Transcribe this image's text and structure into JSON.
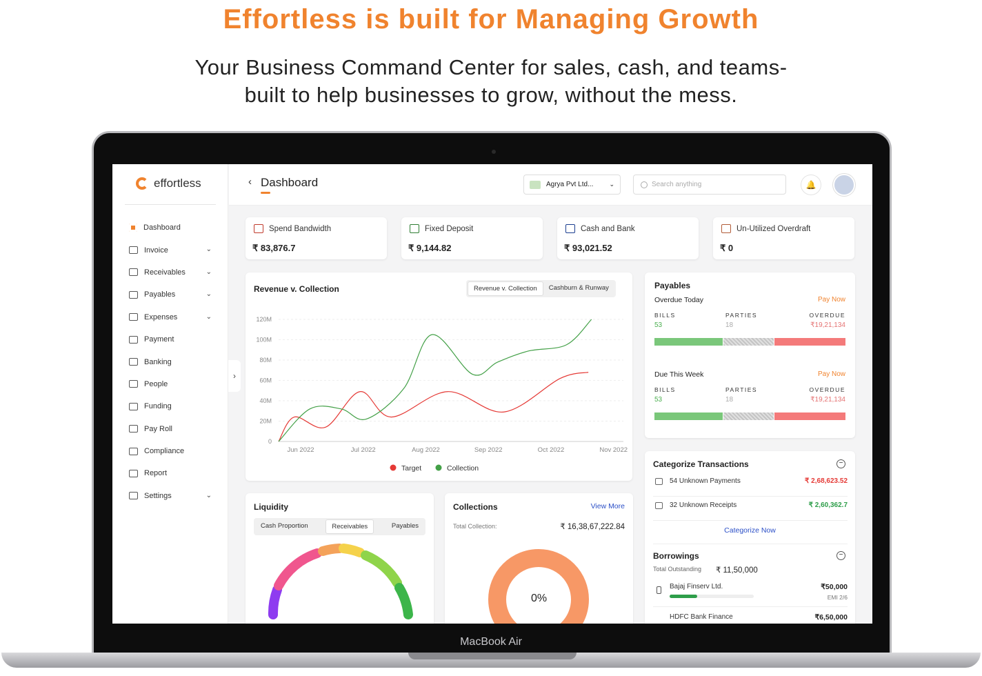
{
  "hero": {
    "title": "Effortless is built for Managing Growth",
    "subtitle_line1": "Your Business Command Center for sales, cash, and teams-",
    "subtitle_line2": "built to help businesses to grow, without the mess."
  },
  "device": {
    "label": "MacBook Air"
  },
  "app": {
    "logo_text": "effortless",
    "accent": "#f0832e"
  },
  "sidebar": {
    "items": [
      {
        "label": "Dashboard",
        "icon": "dashboard-icon",
        "active": true,
        "expandable": false
      },
      {
        "label": "Invoice",
        "icon": "invoice-icon",
        "expandable": true
      },
      {
        "label": "Receivables",
        "icon": "receivables-icon",
        "expandable": true
      },
      {
        "label": "Payables",
        "icon": "payables-icon",
        "expandable": true
      },
      {
        "label": "Expenses",
        "icon": "expenses-icon",
        "expandable": true
      },
      {
        "label": "Payment",
        "icon": "payment-icon",
        "expandable": false
      },
      {
        "label": "Banking",
        "icon": "bank-icon",
        "expandable": false
      },
      {
        "label": "People",
        "icon": "people-icon",
        "expandable": false
      },
      {
        "label": "Funding",
        "icon": "funding-icon",
        "expandable": false
      },
      {
        "label": "Pay Roll",
        "icon": "payroll-icon",
        "expandable": false
      },
      {
        "label": "Compliance",
        "icon": "compliance-icon",
        "expandable": false
      },
      {
        "label": "Report",
        "icon": "report-icon",
        "expandable": false
      },
      {
        "label": "Settings",
        "icon": "settings-icon",
        "expandable": true
      }
    ]
  },
  "header": {
    "title": "Dashboard",
    "company": "Agrya Pvt Ltd...",
    "search_placeholder": "Search anything"
  },
  "stats": [
    {
      "label": "Spend Bandwidth",
      "value": "₹ 83,876.7",
      "icon": "wallet-icon"
    },
    {
      "label": "Fixed Deposit",
      "value": "₹ 9,144.82",
      "icon": "deposit-icon"
    },
    {
      "label": "Cash and Bank",
      "value": "₹ 93,021.52",
      "icon": "bank-icon"
    },
    {
      "label": "Un-Utilized Overdraft",
      "value": "₹ 0",
      "icon": "overdraft-icon"
    }
  ],
  "revenue": {
    "title": "Revenue v. Collection",
    "tabs": [
      "Revenue v. Collection",
      "Cashburn & Runway"
    ],
    "active_tab": 0
  },
  "chart_data": {
    "type": "line",
    "title": "Revenue v. Collection",
    "x": [
      "Jun 2022",
      "Jul 2022",
      "Aug 2022",
      "Sep 2022",
      "Oct 2022",
      "Nov 2022"
    ],
    "y_ticks": [
      "0",
      "20M",
      "40M",
      "60M",
      "80M",
      "100M",
      "120M"
    ],
    "ylim": [
      0,
      120
    ],
    "y_unit": "M",
    "legend_position": "bottom",
    "series": [
      {
        "name": "Target",
        "color": "#e53935",
        "points": [
          [
            0,
            0
          ],
          [
            0.25,
            24
          ],
          [
            0.75,
            14
          ],
          [
            1.3,
            49
          ],
          [
            1.8,
            24
          ],
          [
            2.7,
            49
          ],
          [
            3.6,
            29
          ],
          [
            4.5,
            62
          ],
          [
            4.95,
            68
          ]
        ]
      },
      {
        "name": "Collection",
        "color": "#43a047",
        "points": [
          [
            0,
            0
          ],
          [
            0.5,
            32
          ],
          [
            1.0,
            32
          ],
          [
            1.4,
            22
          ],
          [
            2.0,
            52
          ],
          [
            2.45,
            105
          ],
          [
            3.1,
            66
          ],
          [
            3.5,
            78
          ],
          [
            4.0,
            89
          ],
          [
            4.6,
            95
          ],
          [
            5.0,
            120
          ]
        ]
      }
    ]
  },
  "payables": {
    "title": "Payables",
    "sections": [
      {
        "label": "Overdue Today",
        "action": "Pay Now",
        "bills_label": "BILLS",
        "parties_label": "PARTIES",
        "overdue_label": "OVERDUE",
        "bills": "53",
        "parties": "18",
        "overdue": "₹19,21,134"
      },
      {
        "label": "Due This Week",
        "action": "Pay Now",
        "bills_label": "BILLS",
        "parties_label": "PARTIES",
        "overdue_label": "OVERDUE",
        "bills": "53",
        "parties": "18",
        "overdue": "₹19,21,134"
      }
    ]
  },
  "categorize": {
    "title": "Categorize Transactions",
    "rows": [
      {
        "label": "54 Unknown Payments",
        "amount": "₹ 2,68,623.52",
        "color": "#e53935"
      },
      {
        "label": "32 Unknown Receipts",
        "amount": "₹ 2,60,362.7",
        "color": "#2e9e4a"
      }
    ],
    "action": "Categorize Now"
  },
  "borrowings": {
    "title": "Borrowings",
    "total_label": "Total Outstanding",
    "total": "₹ 11,50,000",
    "loans": [
      {
        "name": "Bajaj Finserv Ltd.",
        "amount": "₹50,000",
        "emi": "EMI 2/6",
        "progress": 0.33
      },
      {
        "name": "HDFC Bank Finance",
        "amount": "₹6,50,000",
        "emi": "",
        "progress": 0.0
      }
    ]
  },
  "liquidity": {
    "title": "Liquidity",
    "tabs": [
      "Cash Proportion",
      "Receivables",
      "Payables"
    ],
    "active_tab": 1
  },
  "collections": {
    "title": "Collections",
    "link": "View More",
    "total_label": "Total Collection:",
    "total": "₹ 16,38,67,222.84",
    "percent": "0%"
  }
}
